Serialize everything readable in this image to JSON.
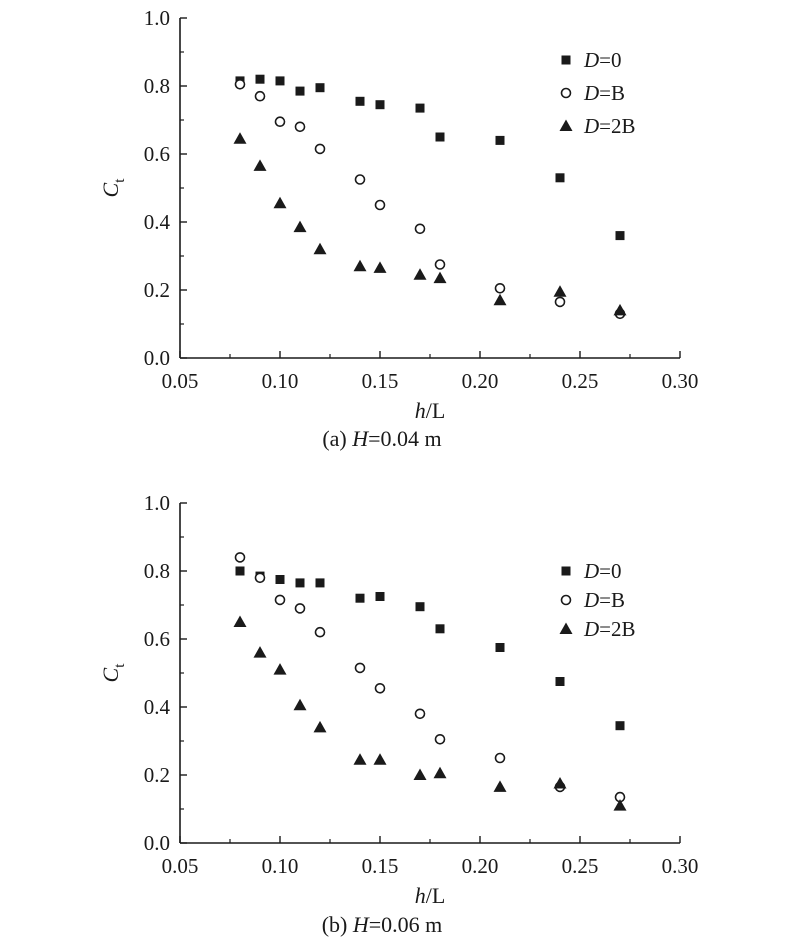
{
  "chart_data": [
    {
      "type": "scatter",
      "caption": {
        "prefix": "(a) ",
        "var": "H",
        "rest": "=0.04 m"
      },
      "xlabel": {
        "var": "h",
        "rest": "/L"
      },
      "ylabel": {
        "main": "C",
        "sub": "t"
      },
      "xlim": [
        0.05,
        0.3
      ],
      "ylim": [
        0.0,
        1.0
      ],
      "xticks": [
        "0.05",
        "0.10",
        "0.15",
        "0.20",
        "0.25",
        "0.30"
      ],
      "yticks": [
        "0.0",
        "0.2",
        "0.4",
        "0.6",
        "0.8",
        "1.0"
      ],
      "legend_position": "top-right",
      "series": [
        {
          "name": {
            "var": "D",
            "rest": "=0"
          },
          "marker": "filled-square",
          "x": [
            0.08,
            0.09,
            0.1,
            0.11,
            0.12,
            0.14,
            0.15,
            0.17,
            0.18,
            0.21,
            0.24,
            0.27
          ],
          "y": [
            0.815,
            0.82,
            0.815,
            0.785,
            0.795,
            0.755,
            0.745,
            0.735,
            0.65,
            0.64,
            0.53,
            0.36
          ]
        },
        {
          "name": {
            "var": "D",
            "rest": "=B"
          },
          "marker": "open-circle",
          "x": [
            0.08,
            0.09,
            0.1,
            0.11,
            0.12,
            0.14,
            0.15,
            0.17,
            0.18,
            0.21,
            0.24,
            0.27
          ],
          "y": [
            0.805,
            0.77,
            0.695,
            0.68,
            0.615,
            0.525,
            0.45,
            0.38,
            0.275,
            0.205,
            0.165,
            0.13
          ]
        },
        {
          "name": {
            "var": "D",
            "rest": "=2B"
          },
          "marker": "filled-triangle",
          "x": [
            0.08,
            0.09,
            0.1,
            0.11,
            0.12,
            0.14,
            0.15,
            0.17,
            0.18,
            0.21,
            0.24,
            0.27
          ],
          "y": [
            0.645,
            0.565,
            0.455,
            0.385,
            0.32,
            0.27,
            0.265,
            0.245,
            0.235,
            0.17,
            0.195,
            0.14
          ]
        }
      ]
    },
    {
      "type": "scatter",
      "caption": {
        "prefix": "(b) ",
        "var": "H",
        "rest": "=0.06 m"
      },
      "xlabel": {
        "var": "h",
        "rest": "/L"
      },
      "ylabel": {
        "main": "C",
        "sub": "t"
      },
      "xlim": [
        0.05,
        0.3
      ],
      "ylim": [
        0.0,
        1.0
      ],
      "xticks": [
        "0.05",
        "0.10",
        "0.15",
        "0.20",
        "0.25",
        "0.30"
      ],
      "yticks": [
        "0.0",
        "0.2",
        "0.4",
        "0.6",
        "0.8",
        "1.0"
      ],
      "legend_position": "right",
      "series": [
        {
          "name": {
            "var": "D",
            "rest": "=0"
          },
          "marker": "filled-square",
          "x": [
            0.08,
            0.09,
            0.1,
            0.11,
            0.12,
            0.14,
            0.15,
            0.17,
            0.18,
            0.21,
            0.24,
            0.27
          ],
          "y": [
            0.8,
            0.785,
            0.775,
            0.765,
            0.765,
            0.72,
            0.725,
            0.695,
            0.63,
            0.575,
            0.475,
            0.345
          ]
        },
        {
          "name": {
            "var": "D",
            "rest": "=B"
          },
          "marker": "open-circle",
          "x": [
            0.08,
            0.09,
            0.1,
            0.11,
            0.12,
            0.14,
            0.15,
            0.17,
            0.18,
            0.21,
            0.24,
            0.27
          ],
          "y": [
            0.84,
            0.78,
            0.715,
            0.69,
            0.62,
            0.515,
            0.455,
            0.38,
            0.305,
            0.25,
            0.165,
            0.135
          ]
        },
        {
          "name": {
            "var": "D",
            "rest": "=2B"
          },
          "marker": "filled-triangle",
          "x": [
            0.08,
            0.09,
            0.1,
            0.11,
            0.12,
            0.14,
            0.15,
            0.17,
            0.18,
            0.21,
            0.24,
            0.27
          ],
          "y": [
            0.65,
            0.56,
            0.51,
            0.405,
            0.34,
            0.245,
            0.245,
            0.2,
            0.205,
            0.165,
            0.175,
            0.11
          ]
        }
      ]
    }
  ]
}
